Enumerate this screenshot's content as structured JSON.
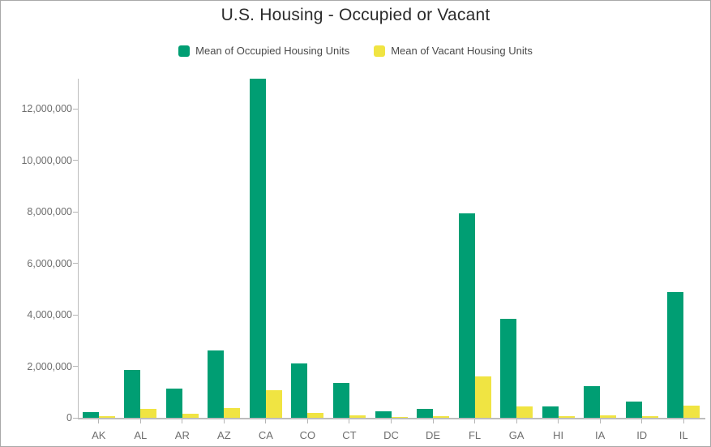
{
  "title": "U.S. Housing - Occupied or Vacant",
  "legend": {
    "items": [
      {
        "label": "Mean of Occupied Housing Units",
        "color": "#009E73"
      },
      {
        "label": "Mean of Vacant Housing Units",
        "color": "#F0E442"
      }
    ]
  },
  "colors": {
    "occupied": "#009E73",
    "vacant": "#F0E442",
    "axis": "#bdbdbd",
    "tick_label": "#6e6e6e",
    "title_text": "#2b2b2b"
  },
  "chart_data": {
    "type": "bar",
    "title": "U.S. Housing - Occupied or Vacant",
    "xlabel": "",
    "ylabel": "",
    "grid": false,
    "legend_position": "top",
    "categories": [
      "AK",
      "AL",
      "AR",
      "AZ",
      "CA",
      "CO",
      "CT",
      "DC",
      "DE",
      "FL",
      "GA",
      "HI",
      "IA",
      "ID",
      "IL"
    ],
    "series": [
      {
        "name": "Mean of Occupied Housing Units",
        "color": "#009E73",
        "values": [
          230000,
          1870000,
          1120000,
          2610000,
          13150000,
          2110000,
          1360000,
          250000,
          340000,
          7950000,
          3840000,
          430000,
          1240000,
          630000,
          4880000
        ]
      },
      {
        "name": "Mean of Vacant Housing Units",
        "color": "#F0E442",
        "values": [
          50000,
          350000,
          160000,
          370000,
          1080000,
          185000,
          100000,
          25000,
          60000,
          1610000,
          450000,
          60000,
          105000,
          70000,
          470000
        ]
      }
    ],
    "ylim": [
      0,
      13400000
    ],
    "yticks": [
      0,
      2000000,
      4000000,
      6000000,
      8000000,
      10000000,
      12000000
    ],
    "ytick_labels": [
      "0",
      "2,000,000",
      "4,000,000",
      "6,000,000",
      "8,000,000",
      "10,000,000",
      "12,000,000"
    ]
  }
}
